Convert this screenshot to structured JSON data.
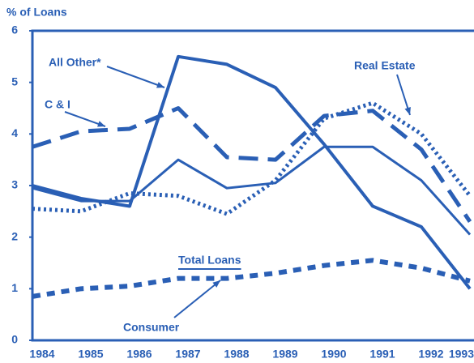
{
  "chart_data": {
    "type": "line",
    "y_axis_label": "% of Loans",
    "categories": [
      "1984",
      "1985",
      "1986",
      "1987",
      "1988",
      "1989",
      "1990",
      "1991",
      "1992",
      "1993"
    ],
    "ylim": [
      0,
      6
    ],
    "yticks": [
      0,
      1,
      2,
      3,
      4,
      5,
      6
    ],
    "color": "#2a5fb5",
    "series": [
      {
        "name": "All Other*",
        "color": "#2a5fb5",
        "values": [
          3.0,
          2.75,
          2.6,
          5.5,
          5.35,
          4.9,
          3.8,
          2.6,
          2.2,
          1.0
        ]
      },
      {
        "name": "C & I",
        "color": "#2a5fb5",
        "values": [
          3.75,
          4.05,
          4.1,
          4.5,
          3.55,
          3.5,
          4.35,
          4.45,
          3.7,
          2.3
        ]
      },
      {
        "name": "Real Estate",
        "color": "#2a5fb5",
        "values": [
          2.55,
          2.5,
          2.85,
          2.8,
          2.45,
          3.1,
          4.3,
          4.6,
          4.0,
          2.8
        ]
      },
      {
        "name": "Total Loans",
        "color": "#2a5fb5",
        "values": [
          2.95,
          2.7,
          2.7,
          3.5,
          2.95,
          3.05,
          3.75,
          3.75,
          3.1,
          2.05
        ]
      },
      {
        "name": "Consumer",
        "color": "#2a5fb5",
        "values": [
          0.85,
          1.0,
          1.05,
          1.2,
          1.2,
          1.3,
          1.45,
          1.55,
          1.4,
          1.15
        ]
      }
    ]
  }
}
